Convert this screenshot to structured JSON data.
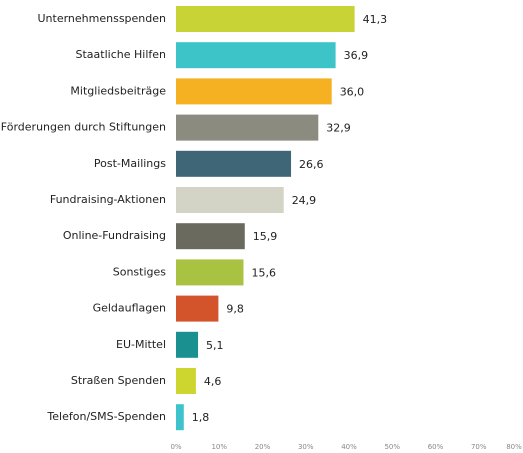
{
  "chart_data": {
    "type": "bar",
    "orientation": "horizontal",
    "categories": [
      "Unternehmensspenden",
      "Staatliche Hilfen",
      "Mitgliedsbeiträge",
      "Förderungen durch Stiftungen",
      "Post-Mailings",
      "Fundraising-Aktionen",
      "Online-Fundraising",
      "Sonstiges",
      "Geldauflagen",
      "EU-Mittel",
      "Straßen Spenden",
      "Telefon/SMS-Spenden"
    ],
    "values": [
      41.3,
      36.9,
      36.0,
      32.9,
      26.6,
      24.9,
      15.9,
      15.6,
      9.8,
      5.1,
      4.6,
      1.8
    ],
    "value_labels": [
      "41,3",
      "36,9",
      "36,0",
      "32,9",
      "26,6",
      "24,9",
      "15,9",
      "15,6",
      "9,8",
      "5,1",
      "4,6",
      "1,8"
    ],
    "colors": [
      "#c8d435",
      "#3cc4c8",
      "#f5b122",
      "#8b8b80",
      "#3e6677",
      "#d3d3c6",
      "#6b6a5f",
      "#a9c241",
      "#d3532a",
      "#1a9090",
      "#ccd62e",
      "#3ec3cc"
    ],
    "xlim": [
      0,
      80
    ],
    "xticks": [
      {
        "value": 0,
        "label": "0%"
      },
      {
        "value": 10,
        "label": "10%"
      },
      {
        "value": 20,
        "label": "20%"
      },
      {
        "value": 30,
        "label": "30%"
      },
      {
        "value": 40,
        "label": "40%"
      },
      {
        "value": 50,
        "label": "50%"
      },
      {
        "value": 60,
        "label": "60%"
      },
      {
        "value": 70,
        "label": "70%"
      },
      {
        "value": 80,
        "label": "80%"
      }
    ],
    "grid": false
  }
}
